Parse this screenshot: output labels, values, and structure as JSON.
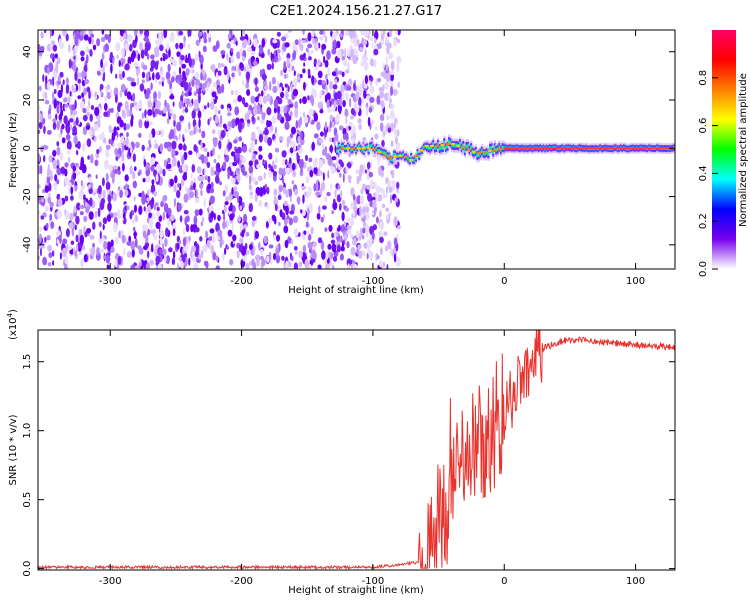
{
  "title": "C2E1.2024.156.21.27.G17",
  "chart_data": [
    {
      "type": "heatmap",
      "xlabel": "Height of straight line (km)",
      "ylabel": "Frequency (Hz)",
      "xlim": [
        -355,
        130
      ],
      "ylim": [
        -50,
        49
      ],
      "xticks": [
        -300,
        -200,
        -100,
        0,
        100
      ],
      "yticks": [
        -40,
        -20,
        0,
        20,
        40
      ],
      "colorbar": {
        "label": "Normalized spectral amplitude",
        "range": [
          0,
          1
        ],
        "ticks": [
          "0.0",
          "0.2",
          "0.4",
          "0.6",
          "0.8"
        ],
        "stops": [
          "#ffffff",
          "#7700ee",
          "#0000ff",
          "#00ffff",
          "#00ff00",
          "#ffff00",
          "#ff7f00",
          "#ff0000",
          "#ff0066"
        ]
      },
      "noise_region_x": [
        -355,
        -90
      ],
      "signal_start_x": -128,
      "signal_freq_track": [
        {
          "x": -128,
          "f": 0
        },
        {
          "x": -110,
          "f": 0
        },
        {
          "x": -100,
          "f": 0
        },
        {
          "x": -88,
          "f": -4
        },
        {
          "x": -78,
          "f": -3
        },
        {
          "x": -70,
          "f": -5
        },
        {
          "x": -60,
          "f": 1
        },
        {
          "x": -50,
          "f": 1
        },
        {
          "x": -40,
          "f": 2
        },
        {
          "x": -30,
          "f": 0
        },
        {
          "x": -20,
          "f": -2
        },
        {
          "x": -10,
          "f": -1
        },
        {
          "x": 0,
          "f": 0
        },
        {
          "x": 130,
          "f": 0
        }
      ]
    },
    {
      "type": "line",
      "xlabel": "Height of straight line (km)",
      "ylabel": "SNR (10 * v/v)",
      "scale_label": "(x10",
      "scale_exp": "4",
      "scale_suffix": ")",
      "xlim": [
        -355,
        130
      ],
      "ylim": [
        -0.01,
        1.73
      ],
      "xticks": [
        -300,
        -200,
        -100,
        0,
        100
      ],
      "yticks": [
        "0.0",
        "0.5",
        "1.0",
        "1.5"
      ],
      "color": "#e8322d",
      "envelope": [
        {
          "x": -355,
          "y": 0.01
        },
        {
          "x": -100,
          "y": 0.01
        },
        {
          "x": -80,
          "y": 0.03
        },
        {
          "x": -62,
          "y": 0.05
        },
        {
          "x": -50,
          "y": 0.4
        },
        {
          "x": -40,
          "y": 0.75
        },
        {
          "x": -30,
          "y": 0.85
        },
        {
          "x": -20,
          "y": 0.95
        },
        {
          "x": -10,
          "y": 1.05
        },
        {
          "x": 0,
          "y": 1.15
        },
        {
          "x": 10,
          "y": 1.35
        },
        {
          "x": 20,
          "y": 1.48
        },
        {
          "x": 30,
          "y": 1.6
        },
        {
          "x": 45,
          "y": 1.65
        },
        {
          "x": 60,
          "y": 1.66
        },
        {
          "x": 90,
          "y": 1.63
        },
        {
          "x": 130,
          "y": 1.6
        }
      ]
    }
  ]
}
